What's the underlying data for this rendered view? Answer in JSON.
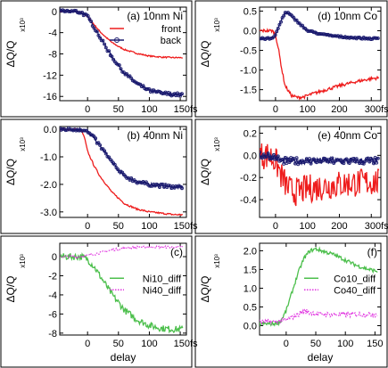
{
  "colors": {
    "front": "#ee1c1c",
    "back": "#1a1a6e",
    "diff_a": "#4cbf4c",
    "diff_b": "#e033e0",
    "axis": "#000000"
  },
  "chart_data": [
    {
      "id": "a",
      "type": "line",
      "panel_label": "(a)",
      "title": "10nm Ni",
      "ylabel": "ΔQ/Q",
      "yexp": "x10³",
      "xlabel": "",
      "xlim": [
        -45,
        160
      ],
      "ylim": [
        -16.8,
        0.8
      ],
      "xticks": [
        0,
        50,
        100,
        150
      ],
      "xticklabels": [
        "0",
        "50",
        "100",
        "150fs"
      ],
      "yticks": [
        0,
        -4,
        -8,
        -12,
        -16
      ],
      "yticklabels": [
        "0",
        "-4",
        "-8",
        "-12",
        "-16"
      ],
      "legend": {
        "position": "top-right"
      },
      "series": [
        {
          "name": "front",
          "style": "line",
          "color": "front",
          "noise": 0.12,
          "x": [
            -45,
            -20,
            -10,
            0,
            10,
            20,
            30,
            40,
            50,
            60,
            80,
            100,
            120,
            140,
            155
          ],
          "y": [
            0,
            0,
            -0.2,
            -1.0,
            -2.4,
            -3.8,
            -4.9,
            -5.9,
            -6.6,
            -7.2,
            -7.9,
            -8.4,
            -8.6,
            -8.7,
            -8.7
          ]
        },
        {
          "name": "back",
          "style": "marker",
          "color": "back",
          "noise": 0.3,
          "x": [
            -45,
            -20,
            -10,
            0,
            10,
            20,
            30,
            40,
            50,
            60,
            80,
            100,
            120,
            140,
            155
          ],
          "y": [
            0,
            0,
            -0.2,
            -1.0,
            -2.8,
            -4.8,
            -6.8,
            -8.6,
            -10.2,
            -11.6,
            -13.6,
            -14.9,
            -15.4,
            -15.6,
            -15.7
          ]
        }
      ]
    },
    {
      "id": "b",
      "type": "line",
      "panel_label": "(b)",
      "title": "40nm Ni",
      "ylabel": "ΔQ/Q",
      "yexp": "x10³",
      "xlabel": "",
      "xlim": [
        -45,
        160
      ],
      "ylim": [
        -3.2,
        0.1
      ],
      "xticks": [
        0,
        50,
        100,
        150
      ],
      "xticklabels": [
        "0",
        "50",
        "100",
        "150fs"
      ],
      "yticks": [
        0,
        -1,
        -2,
        -3
      ],
      "yticklabels": [
        "0.0",
        "-1.0",
        "-2.0",
        "-3.0"
      ],
      "series": [
        {
          "name": "front",
          "style": "line",
          "color": "front",
          "noise": 0.03,
          "x": [
            -45,
            -20,
            -10,
            -5,
            0,
            10,
            20,
            30,
            40,
            50,
            60,
            80,
            100,
            120,
            140,
            155
          ],
          "y": [
            0,
            0,
            -0.05,
            -0.3,
            -0.8,
            -1.3,
            -1.7,
            -2.0,
            -2.3,
            -2.5,
            -2.7,
            -2.9,
            -3.0,
            -3.05,
            -3.1,
            -3.1
          ]
        },
        {
          "name": "back",
          "style": "marker",
          "color": "back",
          "noise": 0.06,
          "x": [
            -45,
            -10,
            0,
            10,
            20,
            30,
            40,
            50,
            60,
            80,
            100,
            120,
            140,
            155
          ],
          "y": [
            0,
            0,
            -0.1,
            -0.3,
            -0.6,
            -0.9,
            -1.2,
            -1.5,
            -1.7,
            -1.9,
            -2.0,
            -2.05,
            -2.1,
            -2.1
          ]
        }
      ]
    },
    {
      "id": "c",
      "type": "line",
      "panel_label": "(c)",
      "title": "",
      "ylabel": "ΔQ/Q",
      "yexp": "x10³",
      "xlabel": "delay",
      "xlim": [
        -45,
        160
      ],
      "ylim": [
        -8.2,
        1.4
      ],
      "xticks": [
        0,
        50,
        100,
        150
      ],
      "xticklabels": [
        "0",
        "50",
        "100",
        "150fs"
      ],
      "yticks": [
        0,
        -2,
        -4,
        -6,
        -8
      ],
      "yticklabels": [
        "0",
        "-2",
        "-4",
        "-6",
        "-8"
      ],
      "legend": {
        "position": "right"
      },
      "series": [
        {
          "name": "Ni10_diff",
          "style": "line",
          "color": "diff_a",
          "noise": 0.35,
          "x": [
            -45,
            -10,
            0,
            10,
            20,
            30,
            40,
            50,
            60,
            80,
            100,
            120,
            140,
            155
          ],
          "y": [
            0,
            0,
            -0.3,
            -1.0,
            -2.0,
            -3.0,
            -4.0,
            -4.8,
            -5.6,
            -6.6,
            -7.2,
            -7.5,
            -7.6,
            -7.6
          ]
        },
        {
          "name": "Ni40_diff",
          "style": "dotted",
          "color": "diff_b",
          "noise": 0.12,
          "x": [
            -45,
            -10,
            0,
            20,
            40,
            60,
            80,
            100,
            120,
            155
          ],
          "y": [
            0,
            0,
            0.1,
            0.4,
            0.7,
            0.9,
            1.0,
            1.0,
            1.0,
            1.0
          ]
        }
      ]
    },
    {
      "id": "d",
      "type": "line",
      "panel_label": "(d)",
      "title": "10nm Co",
      "ylabel": "ΔQ/Q",
      "yexp": "x10³",
      "xlabel": "",
      "xlim": [
        -50,
        330
      ],
      "ylim": [
        -1.78,
        0.6
      ],
      "xticks": [
        0,
        100,
        200,
        300
      ],
      "xticklabels": [
        "0",
        "100",
        "200",
        "300fs"
      ],
      "yticks": [
        0.5,
        0,
        -0.5,
        -1,
        -1.5
      ],
      "yticklabels": [
        "0.5",
        "0.0",
        "-0.5",
        "-1.0",
        "-1.5"
      ],
      "series": [
        {
          "name": "",
          "style": "line",
          "color": "front",
          "noise": 0.04,
          "x": [
            -50,
            -10,
            0,
            10,
            20,
            30,
            50,
            70,
            90,
            110,
            150,
            200,
            250,
            300,
            325
          ],
          "y": [
            0,
            0,
            -0.1,
            -0.5,
            -1.0,
            -1.4,
            -1.65,
            -1.7,
            -1.68,
            -1.62,
            -1.52,
            -1.4,
            -1.3,
            -1.22,
            -1.2
          ]
        },
        {
          "name": "",
          "style": "marker",
          "color": "back",
          "noise": 0.02,
          "x": [
            -50,
            -10,
            0,
            10,
            20,
            30,
            40,
            60,
            80,
            100,
            150,
            200,
            250,
            300,
            325
          ],
          "y": [
            -0.2,
            -0.2,
            -0.1,
            0.1,
            0.3,
            0.45,
            0.45,
            0.3,
            0.15,
            0.0,
            -0.1,
            -0.15,
            -0.18,
            -0.2,
            -0.2
          ]
        }
      ]
    },
    {
      "id": "e",
      "type": "line",
      "panel_label": "(e)",
      "title": "40nm Co",
      "ylabel": "ΔQ/Q",
      "yexp": "x10³",
      "xlabel": "",
      "xlim": [
        -50,
        330
      ],
      "ylim": [
        -0.56,
        0.26
      ],
      "xticks": [
        0,
        100,
        200,
        300
      ],
      "xticklabels": [
        "0",
        "100",
        "200",
        "300fs"
      ],
      "yticks": [
        0.2,
        0,
        -0.2,
        -0.4
      ],
      "yticklabels": [
        "0.2",
        "0.0",
        "-0.2",
        "-0.4"
      ],
      "series": [
        {
          "name": "",
          "style": "line",
          "color": "front",
          "noise": 0.13,
          "x": [
            -50,
            -20,
            0,
            20,
            40,
            60,
            80,
            100,
            150,
            200,
            250,
            300,
            325
          ],
          "y": [
            0,
            0,
            -0.05,
            -0.2,
            -0.3,
            -0.33,
            -0.32,
            -0.3,
            -0.28,
            -0.26,
            -0.25,
            -0.24,
            -0.24
          ]
        },
        {
          "name": "",
          "style": "marker",
          "color": "back",
          "noise": 0.03,
          "x": [
            -50,
            -20,
            0,
            20,
            40,
            60,
            100,
            150,
            200,
            250,
            300,
            325
          ],
          "y": [
            0,
            0,
            -0.02,
            -0.05,
            -0.05,
            -0.05,
            -0.05,
            -0.05,
            -0.05,
            -0.05,
            -0.05,
            -0.05
          ]
        }
      ]
    },
    {
      "id": "f",
      "type": "line",
      "panel_label": "(f)",
      "title": "",
      "ylabel": "ΔQ/Q",
      "yexp": "x10³",
      "xlabel": "delay",
      "xlim": [
        -45,
        160
      ],
      "ylim": [
        -0.25,
        2.2
      ],
      "xticks": [
        0,
        50,
        100,
        150
      ],
      "xticklabels": [
        "0",
        "50",
        "100",
        "150"
      ],
      "yticks": [
        2,
        1.5,
        1,
        0.5,
        0
      ],
      "yticklabels": [
        "2.0",
        "1.5",
        "1.0",
        "0.5",
        "0.0"
      ],
      "legend": {
        "position": "right"
      },
      "series": [
        {
          "name": "Co10_diff",
          "style": "line",
          "color": "diff_a",
          "noise": 0.05,
          "x": [
            -45,
            -20,
            -10,
            0,
            10,
            20,
            30,
            40,
            50,
            60,
            80,
            100,
            120,
            140,
            155
          ],
          "y": [
            0.05,
            0.05,
            0.1,
            0.4,
            0.9,
            1.4,
            1.8,
            2.0,
            2.05,
            2.0,
            1.9,
            1.75,
            1.6,
            1.5,
            1.45
          ]
        },
        {
          "name": "Co40_diff",
          "style": "dotted",
          "color": "diff_b",
          "noise": 0.07,
          "x": [
            -45,
            -20,
            0,
            20,
            30,
            40,
            60,
            80,
            100,
            120,
            155
          ],
          "y": [
            0.1,
            0.1,
            0.15,
            0.3,
            0.4,
            0.35,
            0.3,
            0.3,
            0.3,
            0.3,
            0.3
          ]
        }
      ]
    }
  ]
}
